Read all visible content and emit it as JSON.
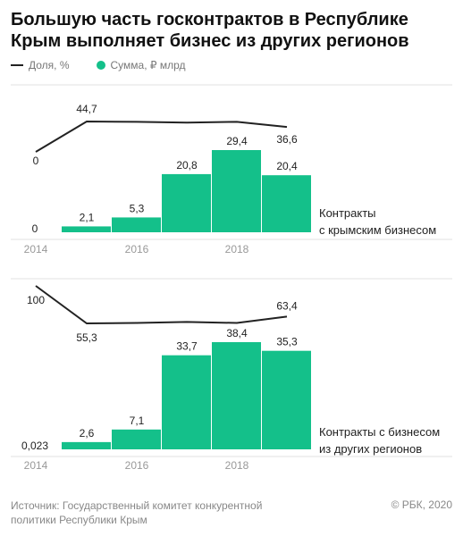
{
  "title": "Большую часть госконтрактов в Республике Крым выполняет бизнес из других регионов",
  "legend": {
    "line_label": "Доля, %",
    "bar_label": "Сумма, ₽ млрд"
  },
  "colors": {
    "bar": "#14c08a",
    "line": "#222222",
    "axis_text": "#999999"
  },
  "source": "Источник: Государственный комитет конкурентной политики Республики Крым",
  "copyright": "© РБК, 2020",
  "chart_data": [
    {
      "type": "bar",
      "label": "Контракты с крымским бизнесом",
      "x": [
        2014,
        2015,
        2016,
        2017,
        2018,
        2019
      ],
      "x_tick_labels": [
        "2014",
        "",
        "2016",
        "",
        "2018",
        ""
      ],
      "bar_values": [
        0,
        2.1,
        5.3,
        20.8,
        29.4,
        20.4
      ],
      "bar_labels": [
        "0",
        "2,1",
        "5,3",
        "20,8",
        "29,4",
        "20,4"
      ],
      "line_values": [
        0,
        44.7,
        44.2,
        43.0,
        44.2,
        36.6
      ],
      "line_labels": [
        "0",
        "44,7",
        "",
        "",
        "",
        "36,6"
      ],
      "bar_ylim": [
        0,
        30
      ]
    },
    {
      "type": "bar",
      "label": "Контракты с бизнесом из других регионов",
      "x": [
        2014,
        2015,
        2016,
        2017,
        2018,
        2019
      ],
      "x_tick_labels": [
        "2014",
        "",
        "2016",
        "",
        "2018",
        ""
      ],
      "bar_values": [
        0.023,
        2.6,
        7.1,
        33.7,
        38.4,
        35.3
      ],
      "bar_labels": [
        "0,023",
        "2,6",
        "7,1",
        "33,7",
        "38,4",
        "35,3"
      ],
      "line_values": [
        100,
        55.3,
        55.8,
        57.0,
        55.8,
        63.4
      ],
      "line_labels": [
        "100",
        "55,3",
        "",
        "",
        "",
        "63,4"
      ],
      "bar_ylim": [
        0,
        40
      ]
    }
  ]
}
